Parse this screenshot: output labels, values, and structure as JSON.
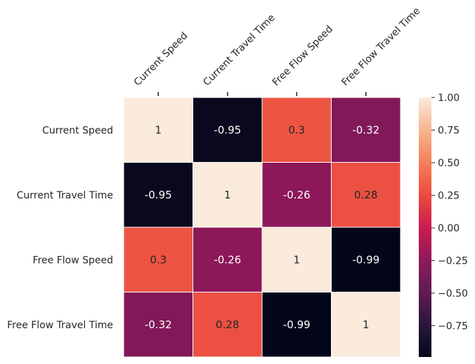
{
  "chart_data": {
    "type": "heatmap",
    "rows": [
      "Current Speed",
      "Current Travel Time",
      "Free Flow Speed",
      "Free Flow Travel Time"
    ],
    "columns": [
      "Current Speed",
      "Current Travel Time",
      "Free Flow Speed",
      "Free Flow Travel Time"
    ],
    "values": [
      [
        1,
        -0.95,
        0.3,
        -0.32
      ],
      [
        -0.95,
        1,
        -0.26,
        0.28
      ],
      [
        0.3,
        -0.26,
        1,
        -0.99
      ],
      [
        -0.32,
        0.28,
        -0.99,
        1
      ]
    ],
    "cell_labels": [
      [
        "1",
        "-0.95",
        "0.3",
        "-0.32"
      ],
      [
        "-0.95",
        "1",
        "-0.26",
        "0.28"
      ],
      [
        "0.3",
        "-0.26",
        "1",
        "-0.99"
      ],
      [
        "-0.32",
        "0.28",
        "-0.99",
        "1"
      ]
    ],
    "colorbar": {
      "vmin": -0.99,
      "vmax": 1.0,
      "ticks": [
        1.0,
        0.75,
        0.5,
        0.25,
        0.0,
        -0.25,
        -0.5,
        -0.75
      ],
      "tick_labels": [
        "1.00",
        "0.75",
        "0.50",
        "0.25",
        "0.00",
        "−0.25",
        "−0.50",
        "−0.75"
      ]
    },
    "colormap": "rocket",
    "cell_border_color": "#ffffff",
    "legend_position": "right"
  }
}
